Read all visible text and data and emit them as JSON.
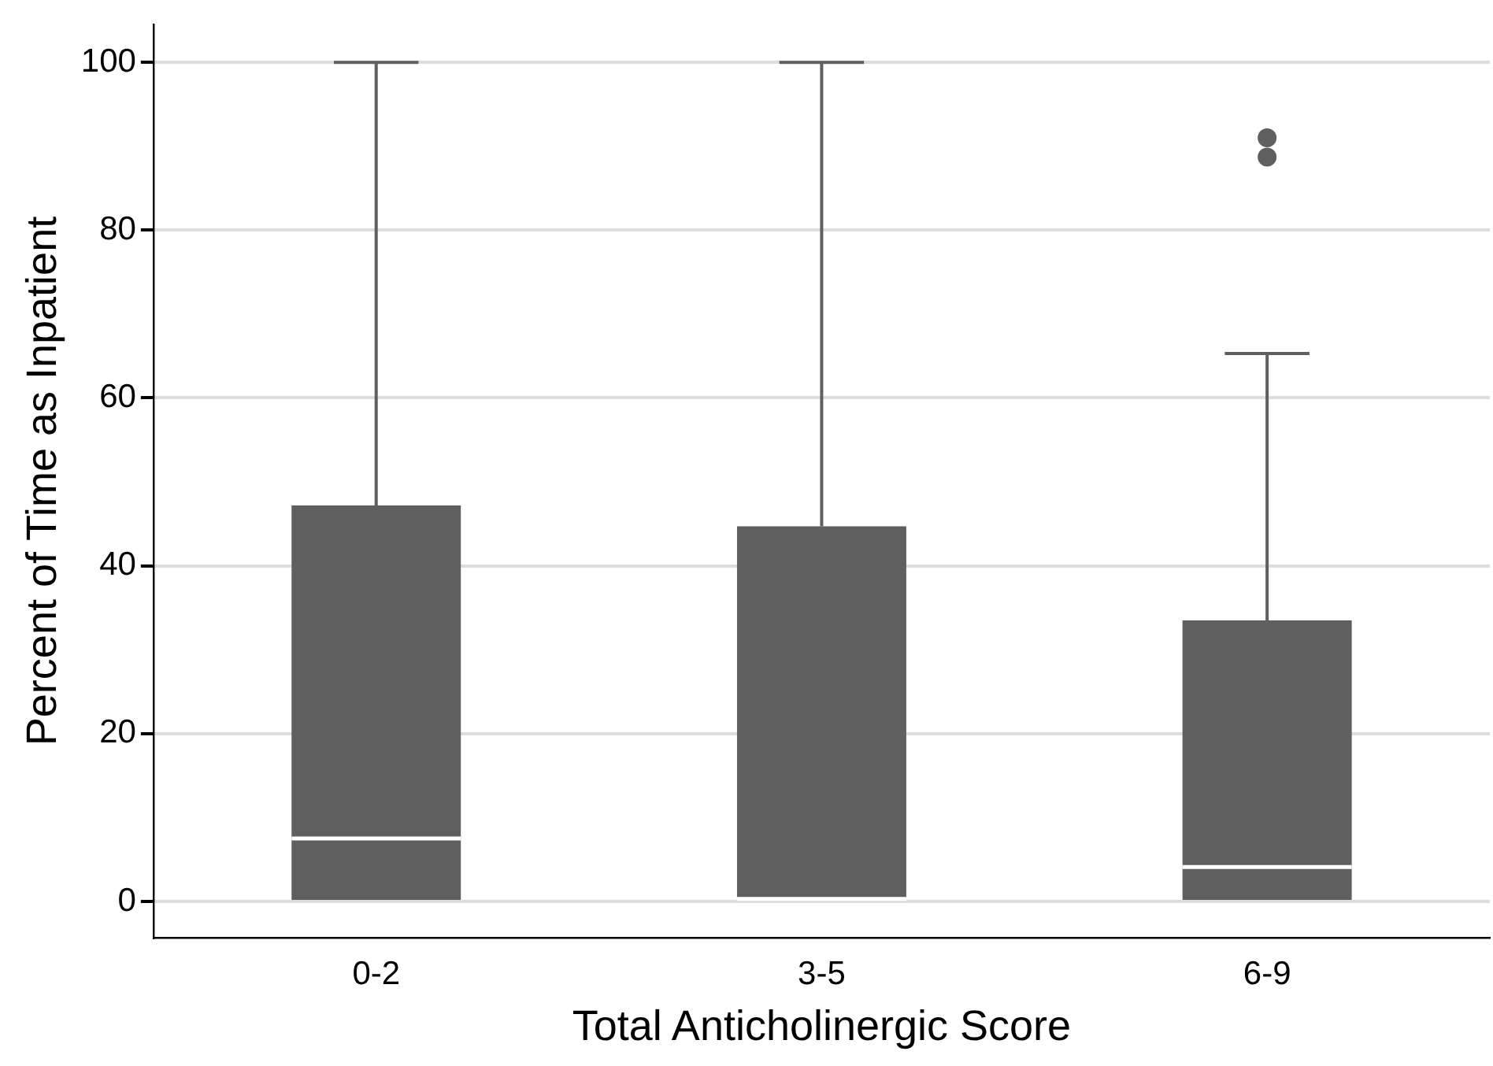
{
  "chart_data": {
    "type": "box",
    "xlabel": "Total Anticholinergic Score",
    "ylabel": "Percent of Time as Inpatient",
    "categories": [
      "0-2",
      "3-5",
      "6-9"
    ],
    "color": "#5f5f5f",
    "ylim": [
      -4.3,
      104.5
    ],
    "yticks": [
      0,
      20,
      40,
      60,
      80,
      100
    ],
    "grid": "y",
    "legend": false,
    "boxes": [
      {
        "low": 0,
        "q1": 0,
        "median": 7.5,
        "q3": 47.2,
        "high": 100
      },
      {
        "low": 0.3,
        "q1": 0.3,
        "median": 0.3,
        "q3": 44.7,
        "high": 100
      },
      {
        "low": 0,
        "q1": 0,
        "median": 4.1,
        "q3": 33.5,
        "high": 65.3,
        "outliers": [
          91,
          88.7
        ]
      }
    ]
  }
}
